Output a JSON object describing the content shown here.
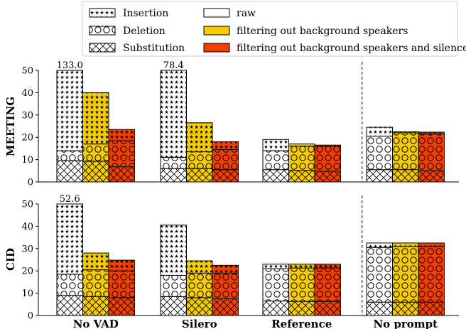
{
  "legend": {
    "components": [
      {
        "key": "insertion",
        "label": "Insertion",
        "hatch": "stars"
      },
      {
        "key": "deletion",
        "label": "Deletion",
        "hatch": "circles"
      },
      {
        "key": "substitution",
        "label": "Substitution",
        "hatch": "crosses"
      }
    ],
    "conditions": [
      {
        "key": "raw",
        "label": "raw",
        "color": "#ffffff"
      },
      {
        "key": "bg",
        "label": "filtering out background speakers",
        "color": "#f5cc00"
      },
      {
        "key": "bgsil",
        "label": "filtering out background speakers and silences",
        "color": "#f53d00"
      }
    ]
  },
  "chart_data": [
    {
      "type": "bar",
      "stacked": true,
      "ylabel": "MEETING",
      "ylim": [
        0,
        50
      ],
      "yticks": [
        0,
        10,
        20,
        30,
        40,
        50
      ],
      "categories": [
        "No VAD",
        "Silero",
        "Reference",
        "No prompt"
      ],
      "conditions": [
        "raw",
        "filtering out background speakers",
        "filtering out background speakers and silences"
      ],
      "series": [
        {
          "name": "Substitution",
          "values": [
            [
              9.5,
              9.3,
              6.8
            ],
            [
              6.0,
              6.0,
              5.5
            ],
            [
              5.5,
              5.2,
              4.8
            ],
            [
              5.5,
              5.5,
              5.0
            ]
          ]
        },
        {
          "name": "Deletion",
          "values": [
            [
              4.5,
              7.7,
              11.7
            ],
            [
              5.0,
              7.5,
              9.0
            ],
            [
              8.5,
              10.8,
              11.2
            ],
            [
              15.0,
              16.5,
              16.5
            ]
          ]
        },
        {
          "name": "Insertion",
          "values": [
            [
              119.0,
              23.0,
              5.0
            ],
            [
              67.4,
              13.0,
              3.5
            ],
            [
              5.0,
              1.0,
              0.5
            ],
            [
              4.0,
              0.5,
              0.8
            ]
          ]
        }
      ],
      "totals": [
        [
          133.0,
          40.0,
          23.5
        ],
        [
          78.4,
          26.5,
          18.0
        ],
        [
          19.0,
          17.0,
          16.5
        ],
        [
          24.5,
          22.5,
          22.3
        ]
      ],
      "clipped_labels": [
        {
          "category": "No VAD",
          "text": "133.0"
        },
        {
          "category": "Silero",
          "text": "78.4"
        }
      ],
      "separator_before": "No prompt",
      "grid": false
    },
    {
      "type": "bar",
      "stacked": true,
      "ylabel": "CID",
      "ylim": [
        0,
        50
      ],
      "yticks": [
        0,
        10,
        20,
        30,
        40,
        50
      ],
      "categories": [
        "No VAD",
        "Silero",
        "Reference",
        "No prompt"
      ],
      "conditions": [
        "raw",
        "filtering out background speakers",
        "filtering out background speakers and silences"
      ],
      "series": [
        {
          "name": "Substitution",
          "values": [
            [
              9.0,
              8.5,
              8.0
            ],
            [
              8.5,
              8.0,
              7.5
            ],
            [
              6.5,
              6.3,
              6.3
            ],
            [
              6.0,
              6.0,
              6.0
            ]
          ]
        },
        {
          "name": "Deletion",
          "values": [
            [
              9.5,
              12.0,
              12.0
            ],
            [
              9.5,
              11.0,
              11.5
            ],
            [
              14.5,
              15.0,
              15.0
            ],
            [
              24.5,
              25.0,
              25.0
            ]
          ]
        },
        {
          "name": "Insertion",
          "values": [
            [
              34.1,
              7.5,
              4.8
            ],
            [
              22.5,
              5.5,
              3.5
            ],
            [
              2.0,
              1.7,
              1.7
            ],
            [
              2.0,
              1.5,
              1.5
            ]
          ]
        }
      ],
      "totals": [
        [
          52.6,
          28.0,
          24.8
        ],
        [
          40.5,
          24.5,
          22.5
        ],
        [
          23.0,
          23.0,
          23.0
        ],
        [
          32.5,
          32.5,
          32.5
        ]
      ],
      "clipped_labels": [
        {
          "category": "No VAD",
          "text": "52.6"
        }
      ],
      "separator_before": "No prompt",
      "grid": false
    }
  ]
}
